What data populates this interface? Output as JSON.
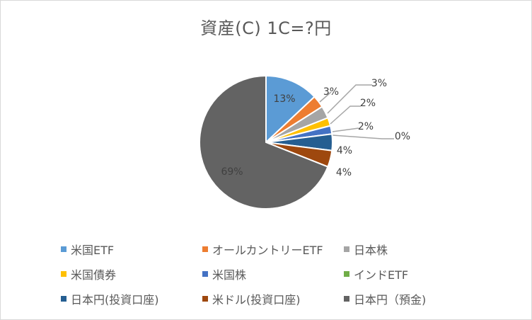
{
  "chart_data": {
    "type": "pie",
    "title": "資産(C) 1C=?円",
    "slices": [
      {
        "name": "米国ETF",
        "value": 13,
        "label": "13%",
        "color": "#5b9bd5"
      },
      {
        "name": "オールカントリーETF",
        "value": 3,
        "label": "3%",
        "color": "#ed7d31"
      },
      {
        "name": "日本株",
        "value": 3,
        "label": "3%",
        "color": "#a5a5a5"
      },
      {
        "name": "米国債券",
        "value": 2,
        "label": "2%",
        "color": "#ffc000"
      },
      {
        "name": "米国株",
        "value": 2,
        "label": "2%",
        "color": "#4472c4"
      },
      {
        "name": "インドETF",
        "value": 0,
        "label": "0%",
        "color": "#70ad47"
      },
      {
        "name": "日本円(投資口座)",
        "value": 4,
        "label": "4%",
        "color": "#255e91"
      },
      {
        "name": "米ドル(投資口座)",
        "value": 4,
        "label": "4%",
        "color": "#9e480e"
      },
      {
        "name": "日本円（預金)",
        "value": 69,
        "label": "69%",
        "color": "#636363"
      }
    ],
    "legend_position": "bottom"
  }
}
